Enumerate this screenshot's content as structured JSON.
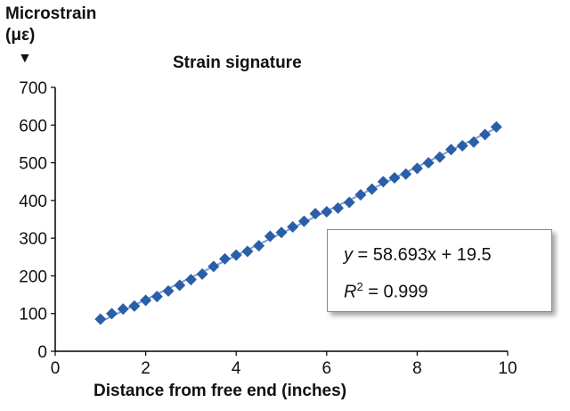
{
  "chart_data": {
    "type": "scatter",
    "title": "Strain signature",
    "ylabel_line1": "Microstrain",
    "ylabel_line2": "(με)",
    "xlabel": "Distance from free end (inches)",
    "xlim": [
      0,
      10
    ],
    "ylim": [
      0,
      700
    ],
    "xticks": [
      0,
      2,
      4,
      6,
      8,
      10
    ],
    "yticks": [
      0,
      100,
      200,
      300,
      400,
      500,
      600,
      700
    ],
    "grid": false,
    "marker": "diamond",
    "marker_color": "#2a5ea8",
    "trendline": {
      "slope": 58.693,
      "intercept": 19.5,
      "color": "#7f9fcf"
    },
    "annotation": {
      "eq_y": "y",
      "eq_rest": " = 58.693x + 19.5",
      "r_letter": "R",
      "r_sup": "2",
      "r_rest": " = 0.999"
    },
    "series": [
      {
        "x": [
          1.0,
          1.25,
          1.5,
          1.75,
          2.0,
          2.25,
          2.5,
          2.75,
          3.0,
          3.25,
          3.5,
          3.75,
          4.0,
          4.25,
          4.5,
          4.75,
          5.0,
          5.25,
          5.5,
          5.75,
          6.0,
          6.25,
          6.5,
          6.75,
          7.0,
          7.25,
          7.5,
          7.75,
          8.0,
          8.25,
          8.5,
          8.75,
          9.0,
          9.25,
          9.5,
          9.75
        ],
        "y": [
          85,
          100,
          112,
          120,
          135,
          145,
          160,
          175,
          190,
          205,
          225,
          245,
          255,
          265,
          280,
          305,
          315,
          330,
          345,
          365,
          370,
          380,
          395,
          415,
          430,
          450,
          460,
          470,
          485,
          500,
          515,
          535,
          545,
          555,
          575,
          595
        ]
      }
    ]
  }
}
